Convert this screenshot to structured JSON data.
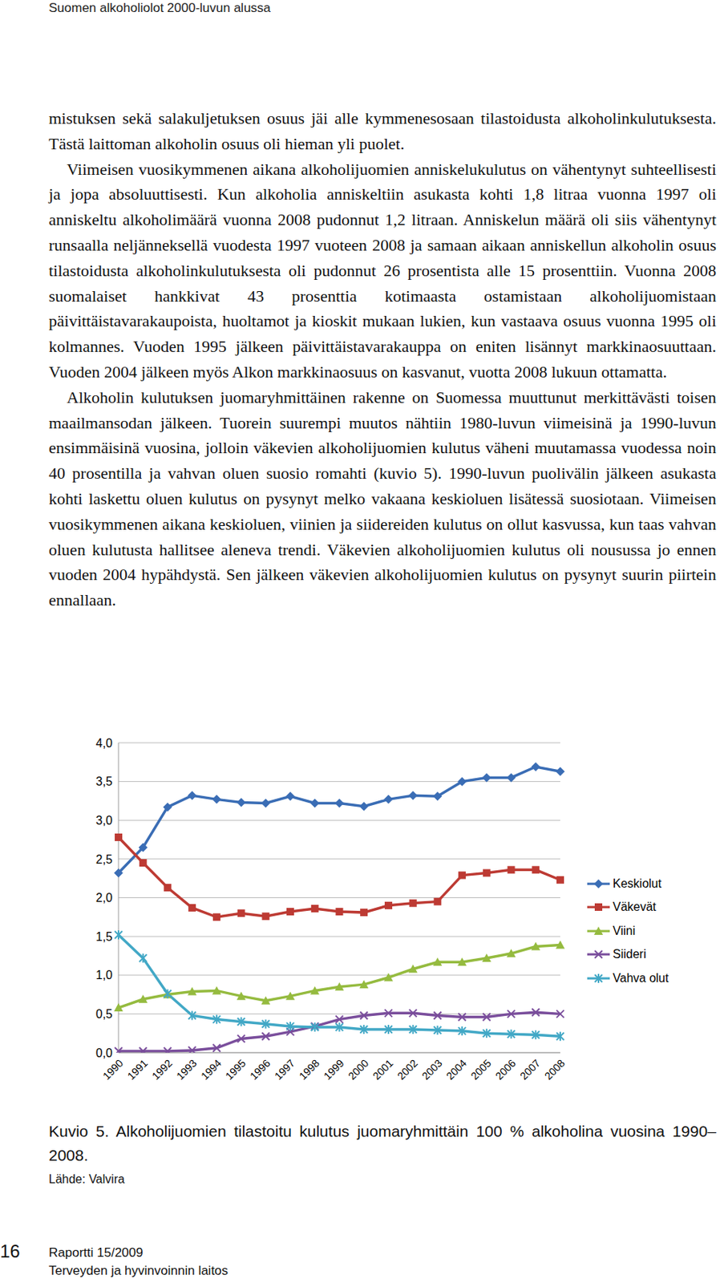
{
  "header": "Suomen alkoholiolot 2000-luvun alussa",
  "paragraphs": [
    "mistuksen sekä salakuljetuksen osuus jäi alle kymmenesosaan tilastoidusta alkoholinkulutuksesta. Tästä laittoman alkoholin osuus oli hieman yli puolet.",
    "Viimeisen vuosikymmenen aikana alkoholijuomien anniskelukulutus on vähentynyt suhteellisesti ja jopa absoluuttisesti. Kun alkoholia anniskeltiin asukasta kohti 1,8 litraa vuonna 1997 oli anniskeltu alkoholimäärä vuonna 2008 pudonnut 1,2 litraan. Anniskelun määrä oli siis vähentynyt runsaalla neljänneksellä vuodesta 1997 vuoteen 2008 ja samaan aikaan anniskellun alkoholin osuus tilastoidusta alkoholinkulutuksesta oli pudonnut 26 prosentista alle 15 prosenttiin. Vuonna 2008 suomalaiset hankkivat 43 prosenttia kotimaasta ostamistaan alkoholijuomistaan päivittäistavarakaupoista, huoltamot ja kioskit mukaan lukien, kun vastaava osuus vuonna 1995 oli kolmannes. Vuoden 1995 jälkeen päivittäistavarakauppa on eniten lisännyt markkinaosuuttaan. Vuoden 2004 jälkeen myös Alkon markkinaosuus on kasvanut, vuotta 2008 lukuun ottamatta.",
    "Alkoholin kulutuksen juomaryhmittäinen rakenne on Suomessa muuttunut merkittävästi toisen maailmansodan jälkeen. Tuorein suurempi muutos nähtiin 1980-luvun viimeisinä ja 1990-luvun ensimmäisinä vuosina, jolloin väkevien alkoholijuomien kulutus väheni muutamassa vuodessa noin 40 prosentilla ja vahvan oluen suosio romahti (kuvio 5). 1990-luvun puolivälin jälkeen asukasta kohti laskettu oluen kulutus on pysynyt melko vakaana keskioluen lisätessä suosiotaan. Viimeisen vuosikymmenen aikana keskioluen, viinien ja siidereiden kulutus on ollut kasvussa, kun taas vahvan oluen kulutusta hallitsee aleneva trendi. Väkevien alkoholijuomien kulutus oli nousussa jo ennen vuoden 2004 hypähdystä. Sen jälkeen väkevien alkoholijuomien kulutus on pysynyt suurin piirtein ennallaan."
  ],
  "chart_data": {
    "type": "line",
    "categories": [
      "1990",
      "1991",
      "1992",
      "1993",
      "1994",
      "1995",
      "1996",
      "1997",
      "1998",
      "1999",
      "2000",
      "2001",
      "2002",
      "2003",
      "2004",
      "2005",
      "2006",
      "2007",
      "2008"
    ],
    "series": [
      {
        "name": "Keskiolut",
        "color": "#3a6db5",
        "marker": "diamond",
        "values": [
          2.32,
          2.65,
          3.17,
          3.32,
          3.27,
          3.23,
          3.22,
          3.31,
          3.22,
          3.22,
          3.18,
          3.27,
          3.32,
          3.31,
          3.5,
          3.55,
          3.55,
          3.69,
          3.63
        ]
      },
      {
        "name": "Väkevät",
        "color": "#bd3a33",
        "marker": "square",
        "values": [
          2.78,
          2.45,
          2.13,
          1.87,
          1.75,
          1.8,
          1.76,
          1.82,
          1.86,
          1.82,
          1.81,
          1.9,
          1.93,
          1.95,
          2.29,
          2.32,
          2.36,
          2.36,
          2.23
        ]
      },
      {
        "name": "Viini",
        "color": "#95bb3f",
        "marker": "triangle",
        "values": [
          0.58,
          0.69,
          0.75,
          0.79,
          0.8,
          0.73,
          0.67,
          0.73,
          0.8,
          0.85,
          0.88,
          0.97,
          1.08,
          1.17,
          1.17,
          1.22,
          1.28,
          1.37,
          1.39
        ]
      },
      {
        "name": "Siideri",
        "color": "#7a4e9c",
        "marker": "x",
        "values": [
          0.02,
          0.02,
          0.02,
          0.03,
          0.06,
          0.18,
          0.21,
          0.27,
          0.34,
          0.43,
          0.48,
          0.51,
          0.51,
          0.48,
          0.46,
          0.46,
          0.5,
          0.52,
          0.5
        ]
      },
      {
        "name": "Vahva olut",
        "color": "#42a8c6",
        "marker": "asterisk",
        "values": [
          1.52,
          1.22,
          0.76,
          0.48,
          0.43,
          0.4,
          0.37,
          0.34,
          0.33,
          0.33,
          0.3,
          0.3,
          0.3,
          0.29,
          0.28,
          0.25,
          0.24,
          0.23,
          0.21
        ]
      }
    ],
    "ylim": [
      0,
      4
    ],
    "yticks": [
      {
        "value": 0,
        "label": "0,0"
      },
      {
        "value": 0.5,
        "label": "0,5"
      },
      {
        "value": 1,
        "label": "1,0"
      },
      {
        "value": 1.5,
        "label": "1,5"
      },
      {
        "value": 2,
        "label": "2,0"
      },
      {
        "value": 2.5,
        "label": "2,5"
      },
      {
        "value": 3,
        "label": "3,0"
      },
      {
        "value": 3.5,
        "label": "3,5"
      },
      {
        "value": 4,
        "label": "4,0"
      }
    ],
    "grid": true,
    "legend": "right"
  },
  "caption": "Kuvio 5. Alkoholijuomien tilastoitu kulutus juomaryhmittäin 100 % alkoholina vuosina 1990–2008.",
  "source": "Lähde: Valvira",
  "footer": {
    "page": "16",
    "lines": [
      "Raportti 15/2009",
      "Terveyden ja hyvinvoinnin laitos"
    ]
  }
}
